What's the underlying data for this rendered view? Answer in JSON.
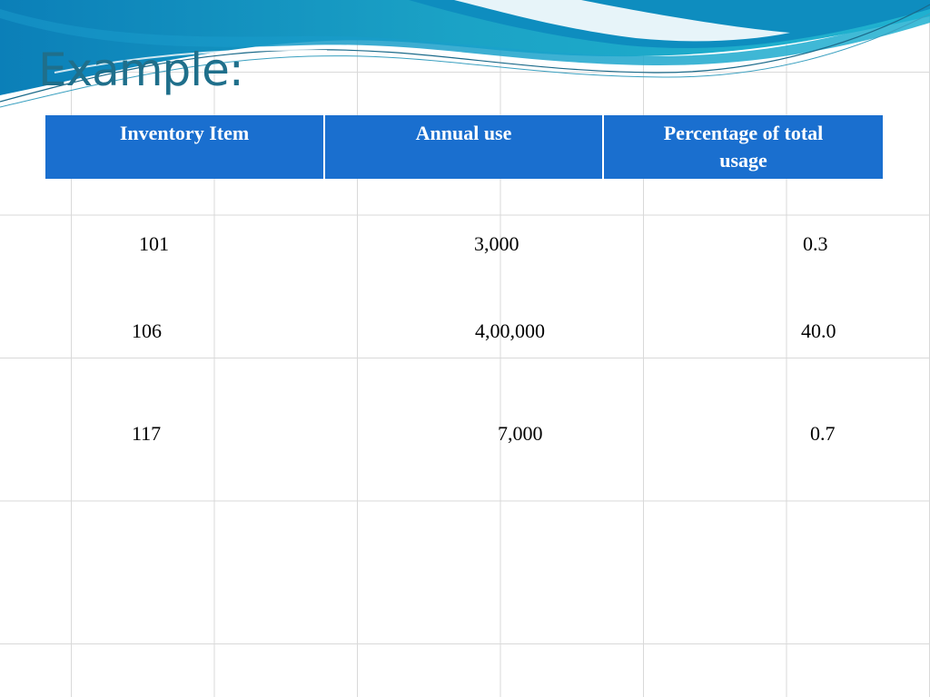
{
  "slide": {
    "title": "Example:",
    "table": {
      "headers": [
        {
          "line1": "Inventory Item",
          "line2": ""
        },
        {
          "line1": "Annual use",
          "line2": ""
        },
        {
          "line1": "Percentage of total",
          "line2": "usage"
        }
      ],
      "rows": [
        {
          "item": "101",
          "annual_use": "3,000",
          "percentage": "0.3"
        },
        {
          "item": "106",
          "annual_use": "4,00,000",
          "percentage": "40.0"
        },
        {
          "item": "117",
          "annual_use": "7,000",
          "percentage": "0.7"
        }
      ]
    }
  },
  "colors": {
    "header_bg": "#1a6fcf",
    "title": "#1f6f8b",
    "wave_primary": "#1ba3c6",
    "grid": "#d9d9d9"
  }
}
